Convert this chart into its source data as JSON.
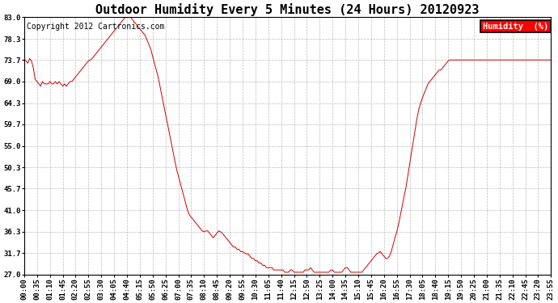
{
  "title": "Outdoor Humidity Every 5 Minutes (24 Hours) 20120923",
  "copyright_text": "Copyright 2012 Cartronics.com",
  "legend_label": "Humidity  (%)",
  "legend_bg": "#FF0000",
  "legend_text_color": "#FFFFFF",
  "line_color": "#CC0000",
  "background_color": "#FFFFFF",
  "grid_color": "#BBBBBB",
  "ylim": [
    27.0,
    83.0
  ],
  "yticks": [
    27.0,
    31.7,
    36.3,
    41.0,
    45.7,
    50.3,
    55.0,
    59.7,
    64.3,
    69.0,
    73.7,
    78.3,
    83.0
  ],
  "title_fontsize": 11,
  "tick_fontsize": 6.5,
  "copyright_fontsize": 7,
  "humidity_data": [
    73.7,
    73.5,
    73.0,
    74.0,
    73.5,
    72.0,
    69.5,
    69.0,
    68.5,
    68.0,
    69.0,
    68.5,
    68.5,
    68.5,
    69.0,
    68.5,
    68.5,
    69.0,
    68.5,
    69.0,
    68.5,
    68.0,
    68.5,
    68.0,
    68.5,
    69.0,
    69.0,
    69.5,
    70.0,
    70.5,
    71.0,
    71.5,
    72.0,
    72.5,
    73.0,
    73.5,
    73.7,
    74.0,
    74.5,
    75.0,
    75.5,
    76.0,
    76.5,
    77.0,
    77.5,
    78.0,
    78.5,
    79.0,
    79.5,
    80.0,
    80.5,
    81.0,
    81.5,
    82.0,
    82.5,
    83.0,
    83.0,
    83.0,
    83.0,
    82.5,
    82.0,
    81.5,
    81.0,
    80.5,
    80.0,
    79.5,
    79.0,
    78.0,
    77.0,
    76.0,
    74.5,
    73.0,
    71.5,
    70.0,
    68.0,
    66.0,
    64.0,
    62.0,
    60.0,
    58.0,
    56.0,
    54.0,
    52.0,
    50.0,
    48.5,
    47.0,
    45.5,
    44.0,
    42.5,
    41.0,
    40.0,
    39.5,
    39.0,
    38.5,
    38.0,
    37.5,
    37.0,
    36.5,
    36.3,
    36.5,
    36.5,
    36.0,
    35.5,
    35.0,
    35.5,
    36.0,
    36.5,
    36.3,
    36.0,
    35.5,
    35.0,
    34.5,
    34.0,
    33.5,
    33.0,
    33.0,
    32.5,
    32.5,
    32.0,
    32.0,
    31.7,
    31.5,
    31.5,
    31.0,
    30.5,
    30.5,
    30.0,
    30.0,
    29.5,
    29.5,
    29.0,
    29.0,
    28.5,
    28.5,
    28.5,
    28.5,
    28.0,
    28.0,
    28.0,
    28.0,
    28.0,
    28.0,
    27.5,
    27.5,
    27.5,
    28.0,
    28.0,
    27.5,
    27.5,
    27.5,
    27.5,
    27.5,
    27.5,
    28.0,
    28.0,
    28.0,
    28.5,
    28.0,
    27.5,
    27.5,
    27.5,
    27.5,
    27.5,
    27.5,
    27.5,
    27.5,
    27.5,
    28.0,
    28.0,
    27.5,
    27.5,
    27.5,
    27.5,
    27.5,
    28.0,
    28.5,
    28.5,
    28.0,
    27.5,
    27.5,
    27.5,
    27.5,
    27.5,
    27.5,
    27.5,
    28.0,
    28.5,
    29.0,
    29.5,
    30.0,
    30.5,
    31.0,
    31.5,
    31.7,
    32.0,
    31.5,
    31.0,
    30.5,
    30.5,
    31.0,
    32.0,
    33.5,
    35.0,
    36.3,
    38.0,
    40.0,
    42.0,
    44.0,
    46.0,
    48.5,
    51.0,
    53.5,
    56.0,
    58.5,
    61.0,
    63.0,
    64.3,
    65.5,
    66.5,
    67.5,
    68.5,
    69.0,
    69.5,
    70.0,
    70.5,
    71.0,
    71.5,
    71.5,
    72.0,
    72.5,
    73.0,
    73.5,
    73.7,
    73.7,
    73.7,
    73.7,
    73.7,
    73.7,
    73.7,
    73.7,
    73.7,
    73.7,
    73.7,
    73.7,
    73.7,
    73.7,
    73.7,
    73.7,
    73.7,
    73.7,
    73.7,
    73.7,
    73.7,
    73.7,
    73.7,
    73.7,
    73.7,
    73.7,
    73.7,
    73.7,
    73.7,
    73.7,
    73.7,
    73.7,
    73.7,
    73.7,
    73.7,
    73.7,
    73.7,
    73.7,
    73.7,
    73.7,
    73.7,
    73.7,
    73.7,
    73.7,
    73.7,
    73.7,
    73.7,
    73.7,
    73.7,
    73.7,
    73.7,
    73.7,
    73.7,
    73.7,
    73.7,
    73.7
  ],
  "xtick_labels": [
    "00:00",
    "00:35",
    "01:10",
    "01:45",
    "02:20",
    "02:55",
    "03:30",
    "04:05",
    "04:40",
    "05:15",
    "05:50",
    "06:25",
    "07:00",
    "07:35",
    "08:10",
    "08:45",
    "09:20",
    "09:55",
    "10:30",
    "11:05",
    "11:40",
    "12:15",
    "12:50",
    "13:25",
    "14:00",
    "14:35",
    "15:10",
    "15:45",
    "16:20",
    "16:55",
    "17:30",
    "18:05",
    "18:40",
    "19:15",
    "19:50",
    "20:25",
    "21:00",
    "21:35",
    "22:10",
    "22:45",
    "23:20",
    "23:55"
  ]
}
